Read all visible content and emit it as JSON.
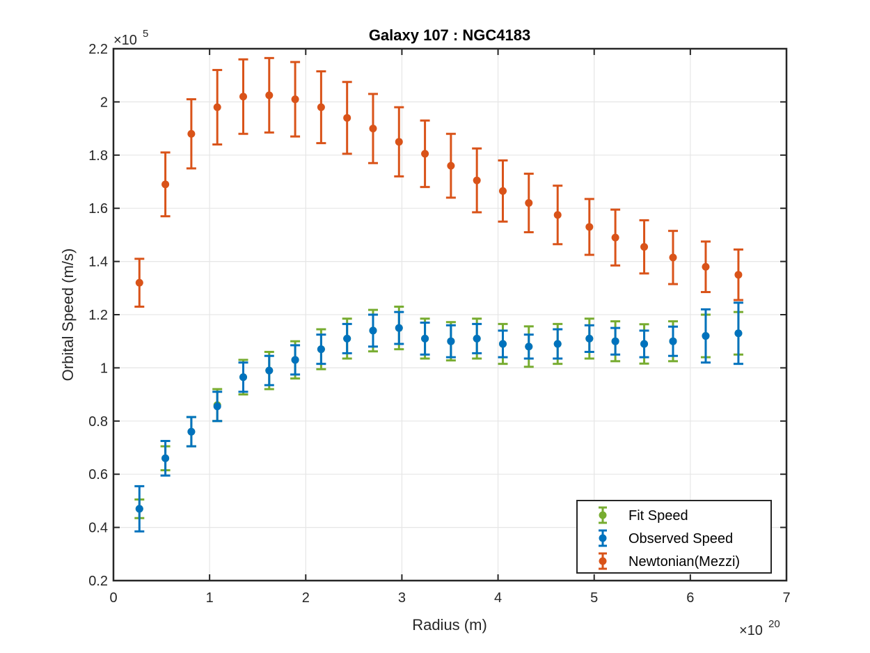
{
  "chart_data": {
    "type": "scatter",
    "title": "Galaxy 107 : NGC4183",
    "xlabel": "Radius (m)",
    "ylabel": "Orbital Speed (m/s)",
    "x_multiplier": {
      "base": "×10",
      "exp": "20"
    },
    "y_multiplier": {
      "base": "×10",
      "exp": "5"
    },
    "xlim": [
      0,
      7
    ],
    "ylim": [
      0.2,
      2.2
    ],
    "x_ticks": [
      0,
      1,
      2,
      3,
      4,
      5,
      6,
      7
    ],
    "x_tick_labels": [
      "0",
      "1",
      "2",
      "3",
      "4",
      "5",
      "6",
      "7"
    ],
    "y_ticks": [
      0.2,
      0.4,
      0.6,
      0.8,
      1.0,
      1.2,
      1.4,
      1.6,
      1.8,
      2.0,
      2.2
    ],
    "y_tick_labels": [
      "0.2",
      "0.4",
      "0.6",
      "0.8",
      "1",
      "1.2",
      "1.4",
      "1.6",
      "1.8",
      "2",
      "2.2"
    ],
    "grid": true,
    "legend_position": "bottom-right",
    "series": [
      {
        "name": "Fit Speed",
        "color": "#77AC30",
        "x": [
          0.27,
          0.54,
          0.81,
          1.08,
          1.35,
          1.62,
          1.89,
          2.16,
          2.43,
          2.7,
          2.97,
          3.24,
          3.51,
          3.78,
          4.05,
          4.32,
          4.62,
          4.95,
          5.22,
          5.52,
          5.82,
          6.16,
          6.5
        ],
        "y": [
          0.47,
          0.66,
          0.76,
          0.86,
          0.965,
          0.99,
          1.03,
          1.07,
          1.11,
          1.14,
          1.15,
          1.11,
          1.1,
          1.11,
          1.09,
          1.08,
          1.09,
          1.11,
          1.1,
          1.09,
          1.1,
          1.12,
          1.13
        ],
        "err": [
          0.035,
          0.045,
          0.055,
          0.06,
          0.065,
          0.07,
          0.07,
          0.075,
          0.075,
          0.078,
          0.08,
          0.075,
          0.072,
          0.075,
          0.075,
          0.076,
          0.075,
          0.075,
          0.075,
          0.074,
          0.075,
          0.08,
          0.08
        ]
      },
      {
        "name": "Observed Speed",
        "color": "#0072BD",
        "x": [
          0.27,
          0.54,
          0.81,
          1.08,
          1.35,
          1.62,
          1.89,
          2.16,
          2.43,
          2.7,
          2.97,
          3.24,
          3.51,
          3.78,
          4.05,
          4.32,
          4.62,
          4.95,
          5.22,
          5.52,
          5.82,
          6.16,
          6.5
        ],
        "y": [
          0.47,
          0.66,
          0.76,
          0.855,
          0.965,
          0.99,
          1.03,
          1.07,
          1.11,
          1.14,
          1.15,
          1.11,
          1.1,
          1.11,
          1.09,
          1.08,
          1.09,
          1.11,
          1.1,
          1.09,
          1.1,
          1.12,
          1.13
        ],
        "err": [
          0.085,
          0.065,
          0.055,
          0.055,
          0.055,
          0.055,
          0.055,
          0.055,
          0.055,
          0.06,
          0.06,
          0.06,
          0.06,
          0.055,
          0.05,
          0.045,
          0.055,
          0.05,
          0.05,
          0.05,
          0.055,
          0.1,
          0.115
        ]
      },
      {
        "name": "Newtonian(Mezzi)",
        "color": "#D95319",
        "x": [
          0.27,
          0.54,
          0.81,
          1.08,
          1.35,
          1.62,
          1.89,
          2.16,
          2.43,
          2.7,
          2.97,
          3.24,
          3.51,
          3.78,
          4.05,
          4.32,
          4.62,
          4.95,
          5.22,
          5.52,
          5.82,
          6.16,
          6.5
        ],
        "y": [
          1.32,
          1.69,
          1.88,
          1.98,
          2.02,
          2.025,
          2.01,
          1.98,
          1.94,
          1.9,
          1.85,
          1.805,
          1.76,
          1.705,
          1.665,
          1.62,
          1.575,
          1.53,
          1.49,
          1.455,
          1.415,
          1.38,
          1.35
        ],
        "err": [
          0.09,
          0.12,
          0.13,
          0.14,
          0.14,
          0.14,
          0.14,
          0.135,
          0.135,
          0.13,
          0.13,
          0.125,
          0.12,
          0.12,
          0.115,
          0.11,
          0.11,
          0.105,
          0.105,
          0.1,
          0.1,
          0.095,
          0.095
        ]
      }
    ]
  }
}
